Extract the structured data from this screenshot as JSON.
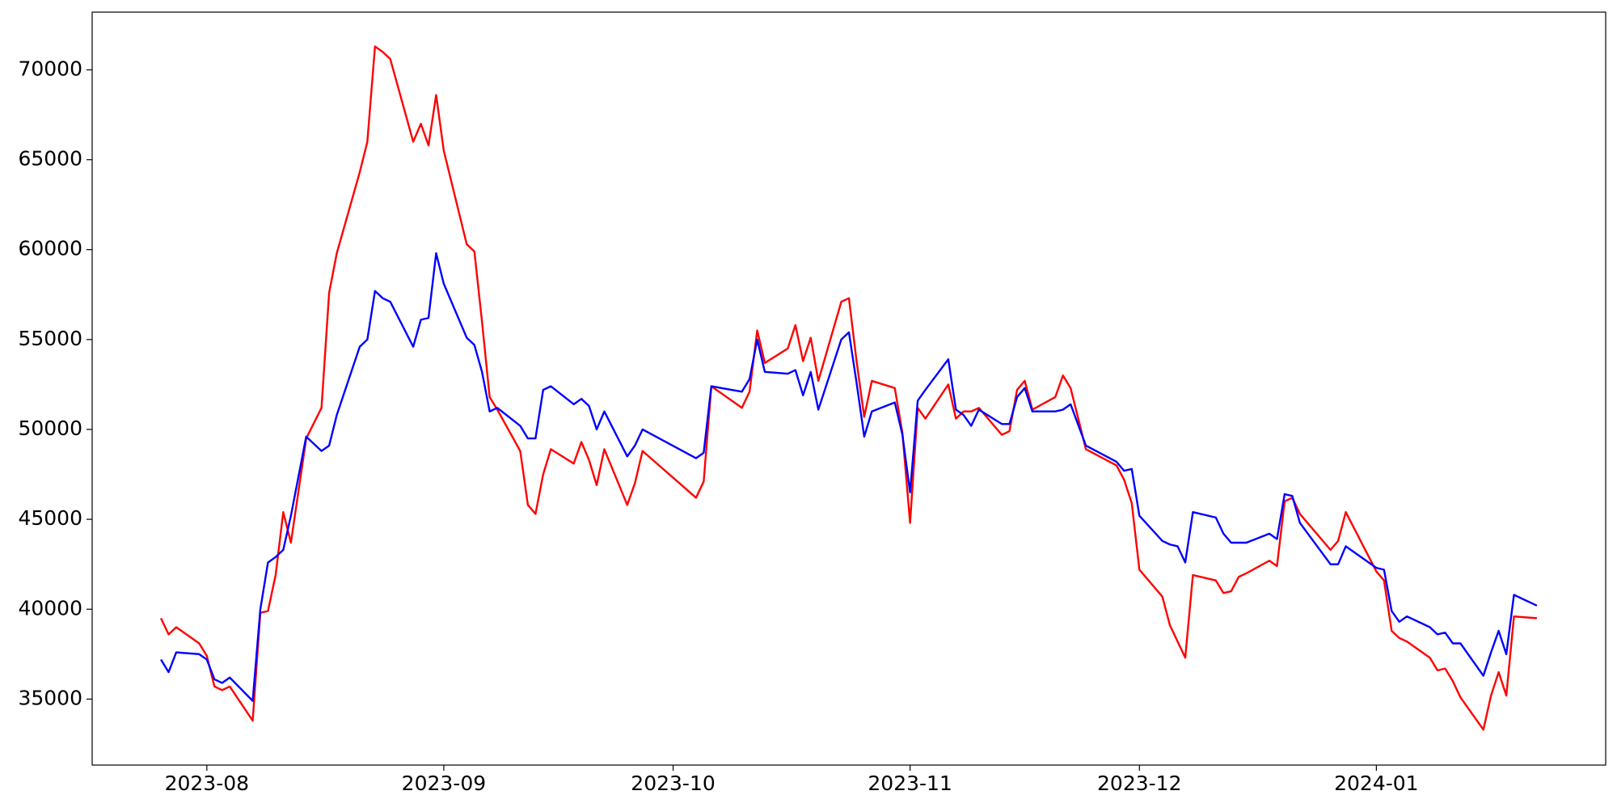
{
  "chart_data": {
    "type": "line",
    "x": [
      19564,
      19565,
      19566,
      19569,
      19570,
      19571,
      19572,
      19573,
      19576,
      19577,
      19578,
      19579,
      19580,
      19581,
      19583,
      19585,
      19586,
      19587,
      19590,
      19591,
      19592,
      19593,
      19594,
      19597,
      19598,
      19599,
      19600,
      19601,
      19604,
      19605,
      19606,
      19607,
      19608,
      19611,
      19612,
      19613,
      19614,
      19615,
      19618,
      19619,
      19620,
      19621,
      19622,
      19625,
      19626,
      19627,
      19634,
      19635,
      19636,
      19640,
      19641,
      19642,
      19643,
      19646,
      19647,
      19648,
      19649,
      19650,
      19653,
      19654,
      19655,
      19656,
      19657,
      19660,
      19661,
      19662,
      19663,
      19664,
      19667,
      19668,
      19669,
      19670,
      19671,
      19674,
      19675,
      19676,
      19677,
      19678,
      19681,
      19682,
      19683,
      19685,
      19689,
      19690,
      19691,
      19692,
      19695,
      19696,
      19697,
      19698,
      19699,
      19702,
      19703,
      19704,
      19705,
      19706,
      19709,
      19710,
      19711,
      19712,
      19713,
      19717,
      19718,
      19719,
      19723,
      19724,
      19725,
      19726,
      19727,
      19730,
      19731,
      19732,
      19733,
      19734,
      19737,
      19738,
      19739,
      19740,
      19741,
      19744
    ],
    "series": [
      {
        "color": "#ff0000",
        "values": [
          39500,
          38600,
          39000,
          38100,
          37400,
          35700,
          35500,
          35700,
          33800,
          39800,
          39900,
          41900,
          45400,
          43700,
          49500,
          51200,
          57600,
          59800,
          64300,
          66000,
          71300,
          71000,
          70600,
          66000,
          67000,
          65800,
          68600,
          65500,
          60300,
          59900,
          56000,
          51800,
          51100,
          48800,
          45800,
          45300,
          47500,
          48900,
          48100,
          49300,
          48300,
          46900,
          48900,
          45800,
          47000,
          48800,
          46200,
          47100,
          52400,
          51200,
          52100,
          55500,
          53700,
          54500,
          55800,
          53800,
          55100,
          52700,
          57100,
          57300,
          53800,
          50700,
          52700,
          52300,
          49800,
          44800,
          51200,
          50600,
          52500,
          50600,
          51000,
          51000,
          51200,
          49700,
          49900,
          52200,
          52700,
          51100,
          51800,
          53000,
          52300,
          48900,
          48000,
          47200,
          45900,
          42200,
          40700,
          39100,
          38200,
          37300,
          41900,
          41600,
          40900,
          41000,
          41800,
          42000,
          42700,
          42400,
          46000,
          46200,
          45300,
          43300,
          43800,
          45400,
          42100,
          41600,
          38800,
          38400,
          38200,
          37300,
          36600,
          36700,
          36000,
          35100,
          33300,
          35200,
          36500,
          35200,
          39600,
          39500
        ]
      },
      {
        "color": "#0000ff",
        "values": [
          37200,
          36500,
          37600,
          37500,
          37200,
          36100,
          35900,
          36200,
          34900,
          40000,
          42600,
          42900,
          43300,
          45200,
          49600,
          48800,
          49100,
          50800,
          54600,
          55000,
          57700,
          57300,
          57100,
          54600,
          56100,
          56200,
          59800,
          58100,
          55100,
          54700,
          53200,
          51000,
          51200,
          50200,
          49500,
          49500,
          52200,
          52400,
          51400,
          51700,
          51300,
          50000,
          51000,
          48500,
          49100,
          50000,
          48400,
          48700,
          52400,
          52100,
          52800,
          55000,
          53200,
          53100,
          53300,
          51900,
          53200,
          51100,
          55000,
          55400,
          52600,
          49600,
          51000,
          51500,
          49700,
          46500,
          51600,
          52200,
          53900,
          51100,
          50800,
          50200,
          51100,
          50300,
          50300,
          51800,
          52300,
          51000,
          51000,
          51100,
          51400,
          49100,
          48200,
          47700,
          47800,
          45200,
          43800,
          43600,
          43500,
          42600,
          45400,
          45100,
          44200,
          43700,
          43700,
          43700,
          44200,
          43900,
          46400,
          46300,
          44800,
          42500,
          42500,
          43500,
          42300,
          42200,
          39900,
          39300,
          39600,
          39000,
          38600,
          38700,
          38100,
          38100,
          36300,
          37600,
          38800,
          37500,
          40800,
          40200
        ]
      }
    ],
    "xlim": [
      19555,
      19753
    ],
    "xticks": [
      {
        "value": 19570,
        "label": "2023-08"
      },
      {
        "value": 19601,
        "label": "2023-09"
      },
      {
        "value": 19631,
        "label": "2023-10"
      },
      {
        "value": 19662,
        "label": "2023-11"
      },
      {
        "value": 19692,
        "label": "2023-12"
      },
      {
        "value": 19723,
        "label": "2024-01"
      }
    ],
    "ylim": [
      31330,
      73210
    ],
    "yticks": [
      35000,
      40000,
      45000,
      50000,
      55000,
      60000,
      65000,
      70000
    ],
    "grid": false
  }
}
